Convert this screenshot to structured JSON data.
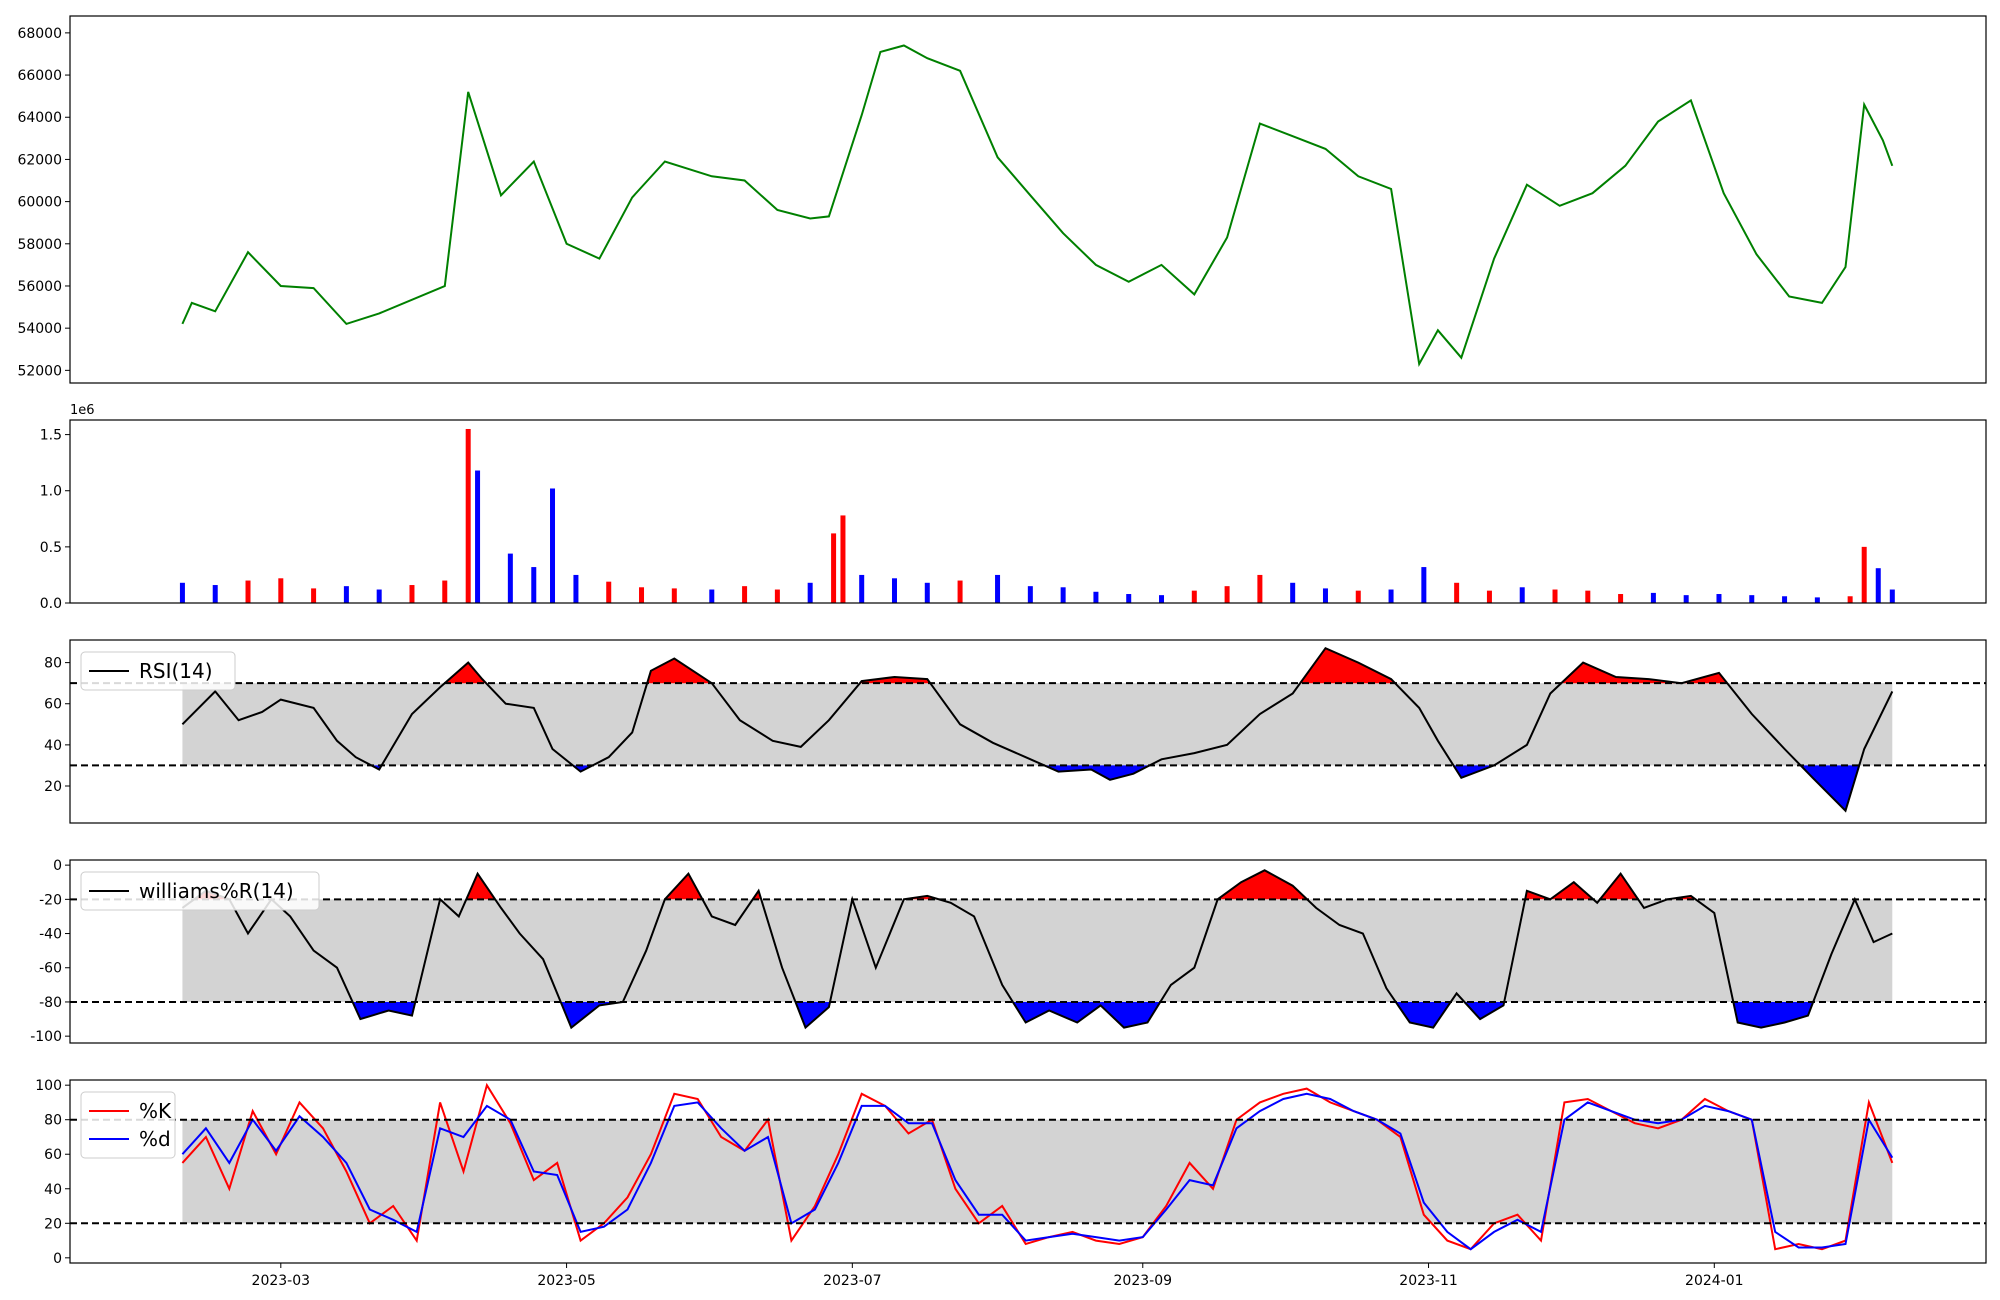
{
  "chart_data": [
    {
      "type": "line",
      "panel": "price",
      "series": [
        {
          "color": "#008000",
          "x": [
            "2023-02-08",
            "2023-02-10",
            "2023-02-15",
            "2023-02-22",
            "2023-03-01",
            "2023-03-08",
            "2023-03-15",
            "2023-03-22",
            "2023-04-05",
            "2023-04-10",
            "2023-04-17",
            "2023-04-24",
            "2023-05-01",
            "2023-05-08",
            "2023-05-15",
            "2023-05-22",
            "2023-06-01",
            "2023-06-08",
            "2023-06-15",
            "2023-06-22",
            "2023-06-26",
            "2023-07-03",
            "2023-07-07",
            "2023-07-12",
            "2023-07-17",
            "2023-07-24",
            "2023-08-01",
            "2023-08-08",
            "2023-08-15",
            "2023-08-22",
            "2023-08-29",
            "2023-09-05",
            "2023-09-12",
            "2023-09-19",
            "2023-09-26",
            "2023-10-03",
            "2023-10-10",
            "2023-10-17",
            "2023-10-24",
            "2023-10-30",
            "2023-11-03",
            "2023-11-08",
            "2023-11-15",
            "2023-11-22",
            "2023-11-29",
            "2023-12-06",
            "2023-12-13",
            "2023-12-20",
            "2023-12-27",
            "2024-01-03",
            "2024-01-10",
            "2024-01-17",
            "2024-01-24",
            "2024-01-29",
            "2024-02-02",
            "2024-02-06",
            "2024-02-08"
          ],
          "y": [
            54200,
            55200,
            54800,
            57600,
            56000,
            55900,
            54200,
            54700,
            56000,
            65200,
            60300,
            61900,
            58000,
            57300,
            60200,
            61900,
            61200,
            61000,
            59600,
            59200,
            59300,
            64100,
            67100,
            67400,
            66800,
            66200,
            62100,
            60300,
            58500,
            57000,
            56200,
            57000,
            55600,
            58300,
            63700,
            63100,
            62500,
            61200,
            60600,
            52300,
            53900,
            52600,
            57300,
            60800,
            59800,
            60400,
            61700,
            63800,
            64800,
            60400,
            57500,
            55500,
            55200,
            56900,
            64600,
            62900,
            61700
          ]
        }
      ],
      "yticks": [
        52000,
        54000,
        56000,
        58000,
        60000,
        62000,
        64000,
        66000,
        68000
      ],
      "ylim": [
        51400,
        68800
      ]
    },
    {
      "type": "bar",
      "panel": "volume",
      "offset_text": "1e6",
      "colors": [
        "#0000ff",
        "#ff0000",
        "#000000"
      ],
      "x": [
        "2023-02-08",
        "2023-02-15",
        "2023-02-22",
        "2023-03-01",
        "2023-03-08",
        "2023-03-15",
        "2023-03-22",
        "2023-03-29",
        "2023-04-05",
        "2023-04-10",
        "2023-04-12",
        "2023-04-19",
        "2023-04-24",
        "2023-04-28",
        "2023-05-03",
        "2023-05-10",
        "2023-05-17",
        "2023-05-24",
        "2023-06-01",
        "2023-06-08",
        "2023-06-15",
        "2023-06-22",
        "2023-06-27",
        "2023-06-29",
        "2023-07-03",
        "2023-07-10",
        "2023-07-17",
        "2023-07-24",
        "2023-08-01",
        "2023-08-08",
        "2023-08-15",
        "2023-08-22",
        "2023-08-29",
        "2023-09-05",
        "2023-09-12",
        "2023-09-19",
        "2023-09-26",
        "2023-10-03",
        "2023-10-10",
        "2023-10-17",
        "2023-10-24",
        "2023-10-31",
        "2023-11-07",
        "2023-11-14",
        "2023-11-21",
        "2023-11-28",
        "2023-12-05",
        "2023-12-12",
        "2023-12-19",
        "2023-12-26",
        "2024-01-02",
        "2024-01-09",
        "2024-01-16",
        "2024-01-23",
        "2024-01-30",
        "2024-02-02",
        "2024-02-05",
        "2024-02-08"
      ],
      "values": [
        180000,
        160000,
        200000,
        220000,
        130000,
        150000,
        120000,
        160000,
        200000,
        1550000,
        1180000,
        440000,
        320000,
        1020000,
        250000,
        190000,
        140000,
        130000,
        120000,
        150000,
        120000,
        180000,
        620000,
        780000,
        250000,
        220000,
        180000,
        200000,
        250000,
        150000,
        140000,
        100000,
        80000,
        70000,
        110000,
        150000,
        250000,
        180000,
        130000,
        110000,
        120000,
        320000,
        180000,
        110000,
        140000,
        120000,
        110000,
        80000,
        90000,
        70000,
        80000,
        70000,
        60000,
        50000,
        60000,
        500000,
        310000,
        120000
      ],
      "color_index": [
        0,
        0,
        1,
        1,
        1,
        0,
        0,
        1,
        1,
        1,
        0,
        0,
        0,
        0,
        0,
        1,
        1,
        1,
        0,
        1,
        1,
        0,
        1,
        1,
        0,
        0,
        0,
        1,
        0,
        0,
        0,
        0,
        0,
        0,
        1,
        1,
        1,
        0,
        0,
        1,
        0,
        0,
        1,
        1,
        0,
        1,
        1,
        1,
        0,
        0,
        0,
        0,
        0,
        0,
        1,
        1,
        0,
        0
      ],
      "yticks": [
        0,
        500000,
        1000000,
        1500000
      ],
      "ytick_labels": [
        "0.0",
        "0.5",
        "1.0",
        "1.5"
      ],
      "ylim": [
        0,
        1630000
      ]
    },
    {
      "type": "line",
      "panel": "rsi",
      "legend": "RSI(14)",
      "band": [
        30,
        70
      ],
      "fill_colors": {
        "above": "#ff0000",
        "below": "#0000ff",
        "band": "#d3d3d3"
      },
      "x": [
        "2023-02-08",
        "2023-02-15",
        "2023-02-20",
        "2023-02-25",
        "2023-03-01",
        "2023-03-08",
        "2023-03-13",
        "2023-03-17",
        "2023-03-22",
        "2023-03-29",
        "2023-04-04",
        "2023-04-10",
        "2023-04-13",
        "2023-04-18",
        "2023-04-24",
        "2023-04-28",
        "2023-05-04",
        "2023-05-10",
        "2023-05-15",
        "2023-05-19",
        "2023-05-24",
        "2023-06-01",
        "2023-06-07",
        "2023-06-14",
        "2023-06-20",
        "2023-06-26",
        "2023-07-03",
        "2023-07-10",
        "2023-07-17",
        "2023-07-24",
        "2023-07-31",
        "2023-08-07",
        "2023-08-14",
        "2023-08-21",
        "2023-08-25",
        "2023-08-30",
        "2023-09-05",
        "2023-09-12",
        "2023-09-19",
        "2023-09-26",
        "2023-10-03",
        "2023-10-10",
        "2023-10-17",
        "2023-10-24",
        "2023-10-30",
        "2023-11-03",
        "2023-11-08",
        "2023-11-15",
        "2023-11-22",
        "2023-11-27",
        "2023-12-04",
        "2023-12-11",
        "2023-12-18",
        "2023-12-25",
        "2024-01-02",
        "2024-01-09",
        "2024-01-16",
        "2024-01-22",
        "2024-01-29",
        "2024-02-02",
        "2024-02-08"
      ],
      "values": [
        50,
        66,
        52,
        56,
        62,
        58,
        42,
        34,
        28,
        55,
        68,
        80,
        72,
        60,
        58,
        38,
        27,
        34,
        46,
        76,
        82,
        70,
        52,
        42,
        39,
        52,
        71,
        73,
        72,
        50,
        41,
        34,
        27,
        28,
        23,
        26,
        33,
        36,
        40,
        55,
        65,
        87,
        80,
        72,
        58,
        42,
        24,
        30,
        40,
        65,
        80,
        73,
        72,
        70,
        75,
        55,
        38,
        24,
        8,
        38,
        66
      ],
      "yticks": [
        20,
        40,
        60,
        80
      ],
      "ylim": [
        2,
        91
      ]
    },
    {
      "type": "line",
      "panel": "williams",
      "legend": "williams%R(14)",
      "band": [
        -80,
        -20
      ],
      "fill_colors": {
        "above": "#ff0000",
        "below": "#0000ff",
        "band": "#d3d3d3"
      },
      "x": [
        "2023-02-08",
        "2023-02-13",
        "2023-02-18",
        "2023-02-22",
        "2023-02-27",
        "2023-03-03",
        "2023-03-08",
        "2023-03-13",
        "2023-03-18",
        "2023-03-24",
        "2023-03-29",
        "2023-04-04",
        "2023-04-08",
        "2023-04-12",
        "2023-04-17",
        "2023-04-21",
        "2023-04-26",
        "2023-05-02",
        "2023-05-08",
        "2023-05-13",
        "2023-05-18",
        "2023-05-22",
        "2023-05-27",
        "2023-06-01",
        "2023-06-06",
        "2023-06-11",
        "2023-06-16",
        "2023-06-21",
        "2023-06-26",
        "2023-07-01",
        "2023-07-06",
        "2023-07-12",
        "2023-07-17",
        "2023-07-22",
        "2023-07-27",
        "2023-08-02",
        "2023-08-07",
        "2023-08-12",
        "2023-08-18",
        "2023-08-23",
        "2023-08-28",
        "2023-09-02",
        "2023-09-07",
        "2023-09-12",
        "2023-09-17",
        "2023-09-22",
        "2023-09-27",
        "2023-10-03",
        "2023-10-08",
        "2023-10-13",
        "2023-10-18",
        "2023-10-23",
        "2023-10-28",
        "2023-11-02",
        "2023-11-07",
        "2023-11-12",
        "2023-11-17",
        "2023-11-22",
        "2023-11-27",
        "2023-12-02",
        "2023-12-07",
        "2023-12-12",
        "2023-12-17",
        "2023-12-22",
        "2023-12-27",
        "2024-01-01",
        "2024-01-06",
        "2024-01-11",
        "2024-01-16",
        "2024-01-21",
        "2024-01-26",
        "2024-01-31",
        "2024-02-04",
        "2024-02-08"
      ],
      "values": [
        -25,
        -15,
        -20,
        -40,
        -20,
        -30,
        -50,
        -60,
        -90,
        -85,
        -88,
        -20,
        -30,
        -5,
        -25,
        -40,
        -55,
        -95,
        -82,
        -80,
        -50,
        -20,
        -5,
        -30,
        -35,
        -15,
        -60,
        -95,
        -83,
        -20,
        -60,
        -20,
        -18,
        -22,
        -30,
        -70,
        -92,
        -85,
        -92,
        -82,
        -95,
        -92,
        -70,
        -60,
        -20,
        -10,
        -3,
        -12,
        -25,
        -35,
        -40,
        -72,
        -92,
        -95,
        -75,
        -90,
        -82,
        -15,
        -20,
        -10,
        -22,
        -5,
        -25,
        -20,
        -18,
        -28,
        -92,
        -95,
        -92,
        -88,
        -52,
        -20,
        -45,
        -40
      ],
      "yticks": [
        -100,
        -80,
        -60,
        -40,
        -20,
        0
      ],
      "ylim": [
        -104,
        3
      ]
    },
    {
      "type": "line",
      "panel": "stochastic",
      "band": [
        20,
        80
      ],
      "fill_colors": {
        "band": "#d3d3d3"
      },
      "x": [
        "2023-02-08",
        "2023-02-13",
        "2023-02-18",
        "2023-02-23",
        "2023-02-28",
        "2023-03-05",
        "2023-03-10",
        "2023-03-15",
        "2023-03-20",
        "2023-03-25",
        "2023-03-30",
        "2023-04-04",
        "2023-04-09",
        "2023-04-14",
        "2023-04-19",
        "2023-04-24",
        "2023-04-29",
        "2023-05-04",
        "2023-05-09",
        "2023-05-14",
        "2023-05-19",
        "2023-05-24",
        "2023-05-29",
        "2023-06-03",
        "2023-06-08",
        "2023-06-13",
        "2023-06-18",
        "2023-06-23",
        "2023-06-28",
        "2023-07-03",
        "2023-07-08",
        "2023-07-13",
        "2023-07-18",
        "2023-07-23",
        "2023-07-28",
        "2023-08-02",
        "2023-08-07",
        "2023-08-12",
        "2023-08-17",
        "2023-08-22",
        "2023-08-27",
        "2023-09-01",
        "2023-09-06",
        "2023-09-11",
        "2023-09-16",
        "2023-09-21",
        "2023-09-26",
        "2023-10-01",
        "2023-10-06",
        "2023-10-11",
        "2023-10-16",
        "2023-10-21",
        "2023-10-26",
        "2023-10-31",
        "2023-11-05",
        "2023-11-10",
        "2023-11-15",
        "2023-11-20",
        "2023-11-25",
        "2023-11-30",
        "2023-12-05",
        "2023-12-10",
        "2023-12-15",
        "2023-12-20",
        "2023-12-25",
        "2023-12-30",
        "2024-01-04",
        "2024-01-09",
        "2024-01-14",
        "2024-01-19",
        "2024-01-24",
        "2024-01-29",
        "2024-02-03",
        "2024-02-08"
      ],
      "series": [
        {
          "name": "%K",
          "color": "#ff0000",
          "values": [
            55,
            70,
            40,
            85,
            60,
            90,
            75,
            50,
            20,
            30,
            10,
            90,
            50,
            100,
            78,
            45,
            55,
            10,
            20,
            35,
            60,
            95,
            92,
            70,
            62,
            80,
            10,
            30,
            60,
            95,
            88,
            72,
            80,
            40,
            20,
            30,
            8,
            12,
            15,
            10,
            8,
            12,
            30,
            55,
            40,
            80,
            90,
            95,
            98,
            90,
            85,
            80,
            70,
            25,
            10,
            5,
            20,
            25,
            10,
            90,
            92,
            85,
            78,
            75,
            80,
            92,
            85,
            80,
            5,
            8,
            5,
            10,
            90,
            55
          ]
        },
        {
          "name": "%d",
          "color": "#0000ff",
          "values": [
            60,
            75,
            55,
            80,
            62,
            82,
            70,
            55,
            28,
            22,
            15,
            75,
            70,
            88,
            80,
            50,
            48,
            15,
            18,
            28,
            55,
            88,
            90,
            75,
            62,
            70,
            20,
            28,
            55,
            88,
            88,
            78,
            78,
            45,
            25,
            25,
            10,
            12,
            14,
            12,
            10,
            12,
            28,
            45,
            42,
            75,
            85,
            92,
            95,
            92,
            85,
            80,
            72,
            32,
            15,
            5,
            15,
            22,
            15,
            80,
            90,
            85,
            80,
            78,
            80,
            88,
            85,
            80,
            15,
            6,
            6,
            8,
            80,
            58
          ]
        }
      ],
      "yticks": [
        0,
        20,
        40,
        60,
        80,
        100
      ],
      "ylim": [
        -3,
        103
      ]
    }
  ],
  "xaxis": {
    "range": [
      "2023-01-15",
      "2024-02-28"
    ],
    "ticks": [
      "2023-03-01",
      "2023-05-01",
      "2023-07-01",
      "2023-09-01",
      "2023-11-01",
      "2024-01-01"
    ],
    "tick_labels": [
      "2023-03",
      "2023-05",
      "2023-07",
      "2023-09",
      "2023-11",
      "2024-01"
    ]
  },
  "reference_line_style": "dashed",
  "axes_color": "#000000"
}
